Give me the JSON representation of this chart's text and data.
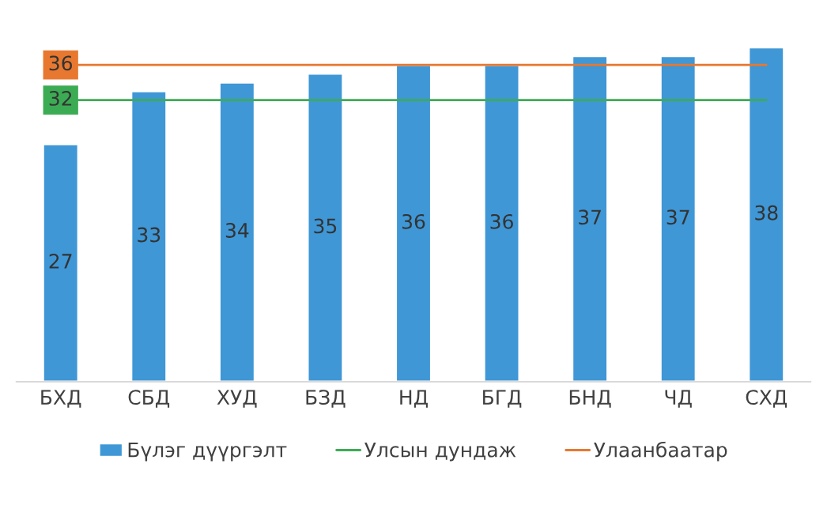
{
  "chart_data": {
    "type": "bar",
    "categories": [
      "БХД",
      "СБД",
      "ХУД",
      "БЗД",
      "НД",
      "БГД",
      "БНД",
      "ЧД",
      "СХД"
    ],
    "series": [
      {
        "name": "Бүлэг дүүргэлт",
        "color": "#3f97d6",
        "values": [
          27,
          33,
          34,
          35,
          36,
          36,
          37,
          37,
          38
        ]
      },
      {
        "name": "Улсын дундаж",
        "type": "line",
        "color": "#3cac54",
        "values": [
          32,
          32,
          32,
          32,
          32,
          32,
          32,
          32,
          32
        ],
        "value_labels": [
          "32",
          null,
          null,
          null,
          null,
          null,
          null,
          null,
          null
        ]
      },
      {
        "name": "Улаанбаатар",
        "type": "line",
        "color": "#e8782f",
        "values": [
          36,
          36,
          36,
          36,
          36,
          36,
          36,
          36,
          36
        ],
        "value_labels": [
          "36",
          null,
          null,
          null,
          null,
          null,
          null,
          null,
          null
        ]
      }
    ],
    "data_labels": true,
    "tick_labels": "x",
    "grid": false,
    "legend": "bottom"
  }
}
